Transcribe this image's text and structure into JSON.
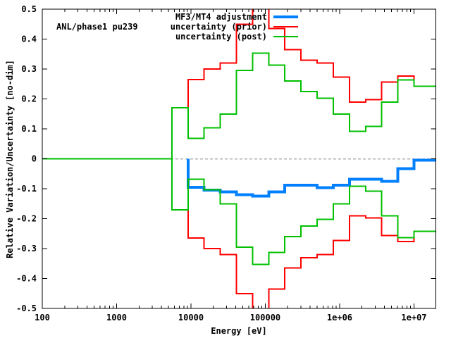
{
  "chart_data": {
    "type": "line",
    "line_style": "step",
    "title": "ANL/phase1 pu239",
    "xlabel": "Energy [eV]",
    "ylabel": "Relative Variation/Uncertainty [no-dim]",
    "x_scale": "log",
    "xlim": [
      100,
      19640000
    ],
    "ylim": [
      -0.5,
      0.5
    ],
    "background_color": "#ffffff",
    "axis_color": "#000000",
    "zero_line_color": "#b0b0b0",
    "grid": false,
    "x_major_ticks": [
      {
        "value": 100,
        "label": "100"
      },
      {
        "value": 1000,
        "label": "1000"
      },
      {
        "value": 10000,
        "label": "10000"
      },
      {
        "value": 100000,
        "label": "100000"
      },
      {
        "value": 1000000,
        "label": "1e+06"
      },
      {
        "value": 10000000,
        "label": "1e+07"
      }
    ],
    "y_ticks": [
      {
        "value": -0.5,
        "label": "-0.5"
      },
      {
        "value": -0.4,
        "label": "-0.4"
      },
      {
        "value": -0.3,
        "label": "-0.3"
      },
      {
        "value": -0.2,
        "label": "-0.2"
      },
      {
        "value": -0.1,
        "label": "-0.1"
      },
      {
        "value": 0,
        "label": "0"
      },
      {
        "value": 0.1,
        "label": "0.1"
      },
      {
        "value": 0.2,
        "label": "0.2"
      },
      {
        "value": 0.3,
        "label": "0.3"
      },
      {
        "value": 0.4,
        "label": "0.4"
      },
      {
        "value": 0.5,
        "label": "0.5"
      }
    ],
    "group_boundaries_eV": [
      100,
      5530.8,
      9118.8,
      15034,
      24788,
      40868,
      67379,
      111090,
      183160,
      301970,
      497870,
      820850,
      1353400,
      2231300,
      3678800,
      6065300,
      10000000,
      19640000
    ],
    "series": [
      {
        "id": "adjustment",
        "legend_label": "MF3/MT4 adjustment",
        "color": "#0080ff",
        "width": 4,
        "lead_in_from_zero": true,
        "values": [
          null,
          null,
          -0.095,
          -0.105,
          -0.11,
          -0.12,
          -0.125,
          -0.11,
          -0.088,
          -0.088,
          -0.096,
          -0.088,
          -0.068,
          -0.068,
          -0.075,
          -0.033,
          -0.005
        ]
      },
      {
        "id": "prior-upper",
        "legend_label": "uncertainty (prior)",
        "color": "#ff0000",
        "width": 2,
        "values": [
          0,
          0.17,
          0.265,
          0.3,
          0.32,
          0.45,
          0.53,
          0.435,
          0.365,
          0.33,
          0.32,
          0.273,
          0.19,
          0.198,
          0.257,
          0.276,
          0.242
        ]
      },
      {
        "id": "prior-lower",
        "legend_label": "uncertainty (prior)",
        "color": "#ff0000",
        "width": 2,
        "values": [
          0,
          -0.17,
          -0.265,
          -0.3,
          -0.32,
          -0.45,
          -0.53,
          -0.435,
          -0.365,
          -0.33,
          -0.32,
          -0.273,
          -0.19,
          -0.198,
          -0.257,
          -0.276,
          -0.242
        ]
      },
      {
        "id": "post-upper",
        "legend_label": "uncertainty (post)",
        "color": "#00c000",
        "width": 2,
        "values": [
          0,
          0.17,
          0.068,
          0.103,
          0.15,
          0.295,
          0.353,
          0.313,
          0.26,
          0.225,
          0.202,
          0.15,
          0.092,
          0.108,
          0.19,
          0.264,
          0.242
        ]
      },
      {
        "id": "post-lower",
        "legend_label": "uncertainty (post)",
        "color": "#00c000",
        "width": 2,
        "values": [
          0,
          -0.17,
          -0.068,
          -0.103,
          -0.15,
          -0.295,
          -0.353,
          -0.313,
          -0.26,
          -0.225,
          -0.202,
          -0.15,
          -0.092,
          -0.108,
          -0.19,
          -0.264,
          -0.242
        ]
      }
    ],
    "legend": {
      "position": "top-right-inside",
      "entries": [
        {
          "label": "MF3/MT4 adjustment",
          "color": "#0080ff",
          "sample_thickness": 4
        },
        {
          "label": "uncertainty (prior)",
          "color": "#ff0000",
          "sample_thickness": 2
        },
        {
          "label": "uncertainty (post)",
          "color": "#00c000",
          "sample_thickness": 2
        }
      ]
    }
  }
}
